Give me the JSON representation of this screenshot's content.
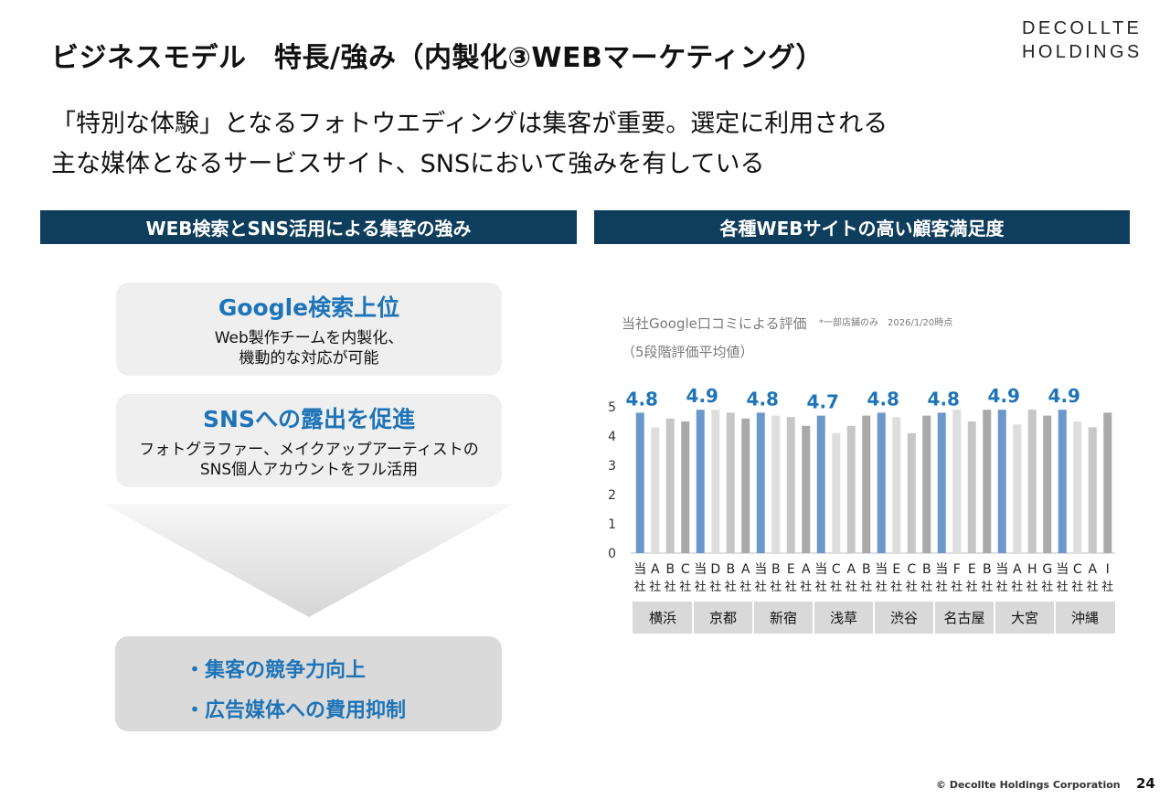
{
  "header": {
    "title": "ビジネスモデル　特長/強み（内製化③WEBマーケティング）",
    "logo_line1": "DECOLLTE",
    "logo_line2": "HOLDINGS"
  },
  "lead": {
    "line1": "「特別な体験」となるフォトウエディングは集客が重要。選定に利用される",
    "line2": "主な媒体となるサービスサイト、SNSにおいて強みを有している"
  },
  "left_panel": {
    "heading": "WEB検索とSNS活用による集客の強み",
    "cards": [
      {
        "title": "Google検索上位",
        "line1": "Web製作チームを内製化、",
        "line2": "機動的な対応が可能"
      },
      {
        "title": "SNSへの露出を促進",
        "line1": "フォトグラファー、メイクアップアーティストの",
        "line2": "SNS個人アカウントをフル活用"
      }
    ],
    "results": [
      "・集客の競争力向上",
      "・広告媒体への費用抑制"
    ]
  },
  "right_panel": {
    "heading": "各種WEBサイトの高い顧客満足度"
  },
  "colors": {
    "navy": "#0f3d5c",
    "accent_blue": "#1e74b8",
    "own_bar": "#6c97cb",
    "group_row": "#d9d9d9"
  },
  "chart_data": {
    "type": "bar",
    "title": "当社Google口コミによる評価",
    "title_note": "*一部店舗のみ　2026/1/20時点",
    "subtitle": "（5段階評価平均値）",
    "ylim": [
      0,
      5
    ],
    "yticks": [
      "0",
      "1",
      "2",
      "3",
      "4",
      "5"
    ],
    "groups": [
      {
        "name": "横浜",
        "label": "4.8",
        "bars": [
          {
            "top": "当",
            "bottom": "社",
            "value": 4.8,
            "own": true
          },
          {
            "top": "A",
            "bottom": "社",
            "value": 4.3,
            "own": false
          },
          {
            "top": "B",
            "bottom": "社",
            "value": 4.6,
            "own": false
          },
          {
            "top": "C",
            "bottom": "社",
            "value": 4.5,
            "own": false
          }
        ]
      },
      {
        "name": "京都",
        "label": "4.9",
        "bars": [
          {
            "top": "当",
            "bottom": "社",
            "value": 4.9,
            "own": true
          },
          {
            "top": "D",
            "bottom": "社",
            "value": 4.9,
            "own": false
          },
          {
            "top": "B",
            "bottom": "社",
            "value": 4.8,
            "own": false
          },
          {
            "top": "A",
            "bottom": "社",
            "value": 4.6,
            "own": false
          }
        ]
      },
      {
        "name": "新宿",
        "label": "4.8",
        "bars": [
          {
            "top": "当",
            "bottom": "社",
            "value": 4.8,
            "own": true
          },
          {
            "top": "B",
            "bottom": "社",
            "value": 4.7,
            "own": false
          },
          {
            "top": "E",
            "bottom": "社",
            "value": 4.65,
            "own": false
          },
          {
            "top": "A",
            "bottom": "社",
            "value": 4.35,
            "own": false
          }
        ]
      },
      {
        "name": "浅草",
        "label": "4.7",
        "bars": [
          {
            "top": "当",
            "bottom": "社",
            "value": 4.7,
            "own": true
          },
          {
            "top": "C",
            "bottom": "社",
            "value": 4.1,
            "own": false
          },
          {
            "top": "A",
            "bottom": "社",
            "value": 4.35,
            "own": false
          },
          {
            "top": "B",
            "bottom": "社",
            "value": 4.7,
            "own": false
          }
        ]
      },
      {
        "name": "渋谷",
        "label": "4.8",
        "bars": [
          {
            "top": "当",
            "bottom": "社",
            "value": 4.8,
            "own": true
          },
          {
            "top": "E",
            "bottom": "社",
            "value": 4.65,
            "own": false
          },
          {
            "top": "C",
            "bottom": "社",
            "value": 4.1,
            "own": false
          },
          {
            "top": "B",
            "bottom": "社",
            "value": 4.7,
            "own": false
          }
        ]
      },
      {
        "name": "名古屋",
        "label": "4.8",
        "bars": [
          {
            "top": "当",
            "bottom": "社",
            "value": 4.8,
            "own": true
          },
          {
            "top": "F",
            "bottom": "社",
            "value": 4.9,
            "own": false
          },
          {
            "top": "E",
            "bottom": "社",
            "value": 4.5,
            "own": false
          },
          {
            "top": "B",
            "bottom": "社",
            "value": 4.9,
            "own": false
          }
        ]
      },
      {
        "name": "大宮",
        "label": "4.9",
        "bars": [
          {
            "top": "当",
            "bottom": "社",
            "value": 4.9,
            "own": true
          },
          {
            "top": "A",
            "bottom": "社",
            "value": 4.4,
            "own": false
          },
          {
            "top": "H",
            "bottom": "社",
            "value": 4.9,
            "own": false
          },
          {
            "top": "G",
            "bottom": "社",
            "value": 4.7,
            "own": false
          }
        ]
      },
      {
        "name": "沖縄",
        "label": "4.9",
        "bars": [
          {
            "top": "当",
            "bottom": "社",
            "value": 4.9,
            "own": true
          },
          {
            "top": "C",
            "bottom": "社",
            "value": 4.5,
            "own": false
          },
          {
            "top": "A",
            "bottom": "社",
            "value": 4.3,
            "own": false
          },
          {
            "top": "I",
            "bottom": "社",
            "value": 4.8,
            "own": false
          }
        ]
      }
    ]
  },
  "footer": {
    "copyright": "© Decollte Holdings Corporation",
    "page_number": "24"
  }
}
